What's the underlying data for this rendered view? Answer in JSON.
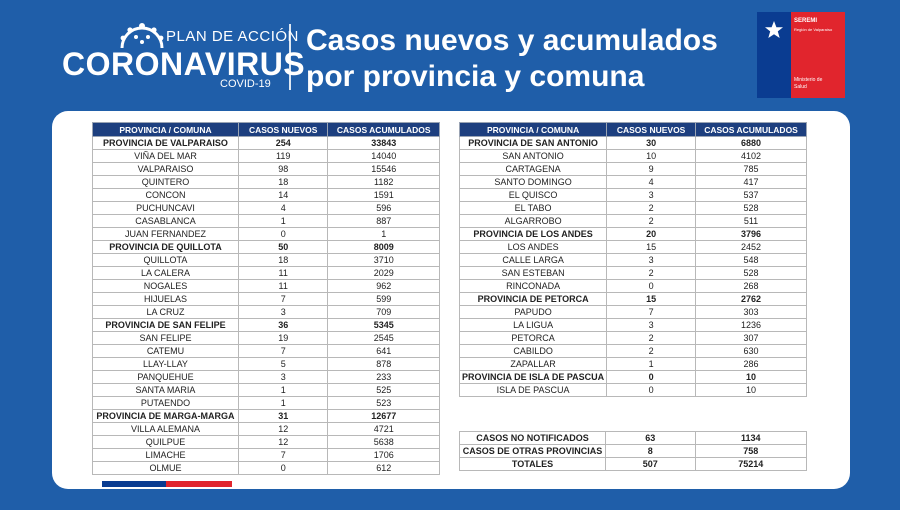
{
  "header": {
    "plan_label": "PLAN DE ACCIÓN",
    "brand": "CORONAVIRUS",
    "covid_label": "COVID-19",
    "title_line1": "Casos nuevos y acumulados",
    "title_line2": "por provincia y comuna",
    "seremi_label": "SEREMI",
    "seremi_region": "Región de Valparaíso",
    "seremi_ministry_line1": "Ministerio de",
    "seremi_ministry_line2": "Salud"
  },
  "colors": {
    "background": "#1f5ea9",
    "table_header": "#1d3f7f",
    "chile_blue": "#0a3c91",
    "chile_red": "#e1252d"
  },
  "table_headers": [
    "PROVINCIA / COMUNA",
    "CASOS NUEVOS",
    "CASOS ACUMULADOS"
  ],
  "left_table": [
    {
      "name": "PROVINCIA DE VALPARAISO",
      "nuevos": "254",
      "acumulados": "33843",
      "provincia": true
    },
    {
      "name": "VIÑA DEL MAR",
      "nuevos": "119",
      "acumulados": "14040"
    },
    {
      "name": "VALPARAISO",
      "nuevos": "98",
      "acumulados": "15546"
    },
    {
      "name": "QUINTERO",
      "nuevos": "18",
      "acumulados": "1182"
    },
    {
      "name": "CONCON",
      "nuevos": "14",
      "acumulados": "1591"
    },
    {
      "name": "PUCHUNCAVI",
      "nuevos": "4",
      "acumulados": "596"
    },
    {
      "name": "CASABLANCA",
      "nuevos": "1",
      "acumulados": "887"
    },
    {
      "name": "JUAN FERNANDEZ",
      "nuevos": "0",
      "acumulados": "1"
    },
    {
      "name": "PROVINCIA DE QUILLOTA",
      "nuevos": "50",
      "acumulados": "8009",
      "provincia": true
    },
    {
      "name": "QUILLOTA",
      "nuevos": "18",
      "acumulados": "3710"
    },
    {
      "name": "LA CALERA",
      "nuevos": "11",
      "acumulados": "2029"
    },
    {
      "name": "NOGALES",
      "nuevos": "11",
      "acumulados": "962"
    },
    {
      "name": "HIJUELAS",
      "nuevos": "7",
      "acumulados": "599"
    },
    {
      "name": "LA CRUZ",
      "nuevos": "3",
      "acumulados": "709"
    },
    {
      "name": "PROVINCIA DE SAN FELIPE",
      "nuevos": "36",
      "acumulados": "5345",
      "provincia": true
    },
    {
      "name": "SAN FELIPE",
      "nuevos": "19",
      "acumulados": "2545"
    },
    {
      "name": "CATEMU",
      "nuevos": "7",
      "acumulados": "641"
    },
    {
      "name": "LLAY-LLAY",
      "nuevos": "5",
      "acumulados": "878"
    },
    {
      "name": "PANQUEHUE",
      "nuevos": "3",
      "acumulados": "233"
    },
    {
      "name": "SANTA MARIA",
      "nuevos": "1",
      "acumulados": "525"
    },
    {
      "name": "PUTAENDO",
      "nuevos": "1",
      "acumulados": "523"
    },
    {
      "name": "PROVINCIA DE MARGA-MARGA",
      "nuevos": "31",
      "acumulados": "12677",
      "provincia": true
    },
    {
      "name": "VILLA ALEMANA",
      "nuevos": "12",
      "acumulados": "4721"
    },
    {
      "name": "QUILPUE",
      "nuevos": "12",
      "acumulados": "5638"
    },
    {
      "name": "LIMACHE",
      "nuevos": "7",
      "acumulados": "1706"
    },
    {
      "name": "OLMUE",
      "nuevos": "0",
      "acumulados": "612"
    }
  ],
  "right_table": [
    {
      "name": "PROVINCIA DE SAN ANTONIO",
      "nuevos": "30",
      "acumulados": "6880",
      "provincia": true
    },
    {
      "name": "SAN ANTONIO",
      "nuevos": "10",
      "acumulados": "4102"
    },
    {
      "name": "CARTAGENA",
      "nuevos": "9",
      "acumulados": "785"
    },
    {
      "name": "SANTO DOMINGO",
      "nuevos": "4",
      "acumulados": "417"
    },
    {
      "name": "EL QUISCO",
      "nuevos": "3",
      "acumulados": "537"
    },
    {
      "name": "EL TABO",
      "nuevos": "2",
      "acumulados": "528"
    },
    {
      "name": "ALGARROBO",
      "nuevos": "2",
      "acumulados": "511"
    },
    {
      "name": "PROVINCIA DE LOS ANDES",
      "nuevos": "20",
      "acumulados": "3796",
      "provincia": true
    },
    {
      "name": "LOS ANDES",
      "nuevos": "15",
      "acumulados": "2452"
    },
    {
      "name": "CALLE LARGA",
      "nuevos": "3",
      "acumulados": "548"
    },
    {
      "name": "SAN ESTEBAN",
      "nuevos": "2",
      "acumulados": "528"
    },
    {
      "name": "RINCONADA",
      "nuevos": "0",
      "acumulados": "268"
    },
    {
      "name": "PROVINCIA DE PETORCA",
      "nuevos": "15",
      "acumulados": "2762",
      "provincia": true
    },
    {
      "name": "PAPUDO",
      "nuevos": "7",
      "acumulados": "303"
    },
    {
      "name": "LA LIGUA",
      "nuevos": "3",
      "acumulados": "1236"
    },
    {
      "name": "PETORCA",
      "nuevos": "2",
      "acumulados": "307"
    },
    {
      "name": "CABILDO",
      "nuevos": "2",
      "acumulados": "630"
    },
    {
      "name": "ZAPALLAR",
      "nuevos": "1",
      "acumulados": "286"
    },
    {
      "name": "PROVINCIA DE ISLA DE PASCUA",
      "nuevos": "0",
      "acumulados": "10",
      "provincia": true
    },
    {
      "name": "ISLA DE PASCUA",
      "nuevos": "0",
      "acumulados": "10"
    }
  ],
  "summary_table": [
    {
      "name": "CASOS NO NOTIFICADOS",
      "nuevos": "63",
      "acumulados": "1134"
    },
    {
      "name": "CASOS DE OTRAS PROVINCIAS",
      "nuevos": "8",
      "acumulados": "758"
    },
    {
      "name": "TOTALES",
      "nuevos": "507",
      "acumulados": "75214"
    }
  ]
}
